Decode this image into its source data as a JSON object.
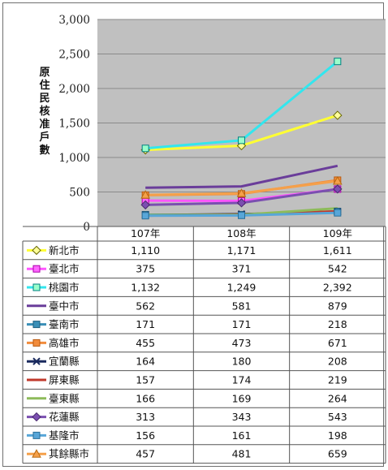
{
  "chart_data": {
    "type": "line",
    "ylabel": "原住民核准戶數",
    "ylim": [
      0,
      3000
    ],
    "yticks": [
      "0",
      "500",
      "1,000",
      "1,500",
      "2,000",
      "2,500",
      "3,000"
    ],
    "ytick_values": [
      0,
      500,
      1000,
      1500,
      2000,
      2500,
      3000
    ],
    "categories": [
      "107年",
      "108年",
      "109年"
    ],
    "grid": true,
    "legend": "data-table",
    "series": [
      {
        "name": "新北市",
        "values": [
          1110,
          1171,
          1611
        ],
        "labels": [
          "1,110",
          "1,171",
          "1,611"
        ],
        "color": "#ffff33",
        "marker": "diamond",
        "marker_fill": "#ffff99",
        "marker_stroke": "#666600"
      },
      {
        "name": "臺北市",
        "values": [
          375,
          371,
          542
        ],
        "labels": [
          "375",
          "371",
          "542"
        ],
        "color": "#ff55ff",
        "marker": "square",
        "marker_fill": "#ff66ff",
        "marker_stroke": "#aa00aa"
      },
      {
        "name": "桃園市",
        "values": [
          1132,
          1249,
          2392
        ],
        "labels": [
          "1,132",
          "1,249",
          "2,392"
        ],
        "color": "#33e6ee",
        "marker": "square",
        "marker_fill": "#99ffcc",
        "marker_stroke": "#008080"
      },
      {
        "name": "臺中市",
        "values": [
          562,
          581,
          879
        ],
        "labels": [
          "562",
          "581",
          "879"
        ],
        "color": "#6a3d9a",
        "marker": "none"
      },
      {
        "name": "臺南市",
        "values": [
          171,
          171,
          218
        ],
        "labels": [
          "171",
          "171",
          "218"
        ],
        "color": "#3a8fb7",
        "marker": "square",
        "marker_fill": "#3a8fb7",
        "marker_stroke": "#1f5f7f"
      },
      {
        "name": "高雄市",
        "values": [
          455,
          473,
          671
        ],
        "labels": [
          "455",
          "473",
          "671"
        ],
        "color": "#f28c3c",
        "marker": "square",
        "marker_fill": "#f28c3c",
        "marker_stroke": "#b85a10"
      },
      {
        "name": "宜蘭縣",
        "values": [
          164,
          180,
          208
        ],
        "labels": [
          "164",
          "180",
          "208"
        ],
        "color": "#1a2a5e",
        "marker": "x"
      },
      {
        "name": "屏東縣",
        "values": [
          157,
          174,
          219
        ],
        "labels": [
          "157",
          "174",
          "219"
        ],
        "color": "#c0392b",
        "marker": "none"
      },
      {
        "name": "臺東縣",
        "values": [
          166,
          169,
          264
        ],
        "labels": [
          "166",
          "169",
          "264"
        ],
        "color": "#8dbb5a",
        "marker": "none"
      },
      {
        "name": "花蓮縣",
        "values": [
          313,
          343,
          543
        ],
        "labels": [
          "313",
          "343",
          "543"
        ],
        "color": "#7b4fb0",
        "marker": "diamond",
        "marker_fill": "#7b4fb0",
        "marker_stroke": "#4a2a70"
      },
      {
        "name": "基隆市",
        "values": [
          156,
          161,
          198
        ],
        "labels": [
          "156",
          "161",
          "198"
        ],
        "color": "#58a6d8",
        "marker": "square",
        "marker_fill": "#58a6d8",
        "marker_stroke": "#2a6f99"
      },
      {
        "name": "其餘縣市",
        "values": [
          457,
          481,
          659
        ],
        "labels": [
          "457",
          "481",
          "659"
        ],
        "color": "#f5a04a",
        "marker": "triangle",
        "marker_fill": "#f5a04a",
        "marker_stroke": "#b86a10"
      }
    ]
  }
}
